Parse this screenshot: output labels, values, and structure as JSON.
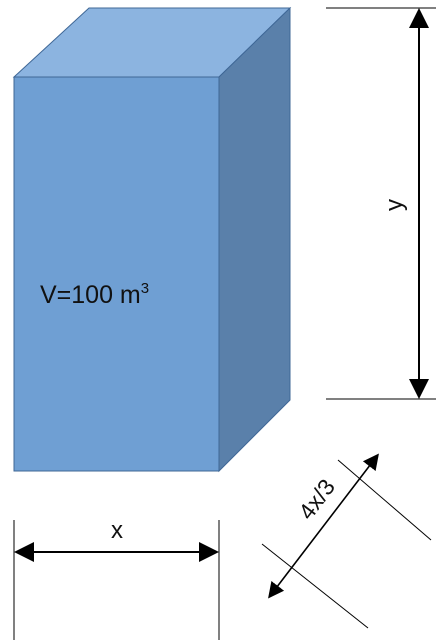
{
  "volume_label": {
    "text": "V=100 m",
    "superscript": "3"
  },
  "dimensions": {
    "width_label": "x",
    "height_label": "y",
    "depth_label": "4x/3"
  },
  "colors": {
    "front_face": "#6f9fd3",
    "top_face": "#8cb4e0",
    "side_face": "#5a80aa",
    "edge": "#3f6796",
    "line": "#000000"
  }
}
